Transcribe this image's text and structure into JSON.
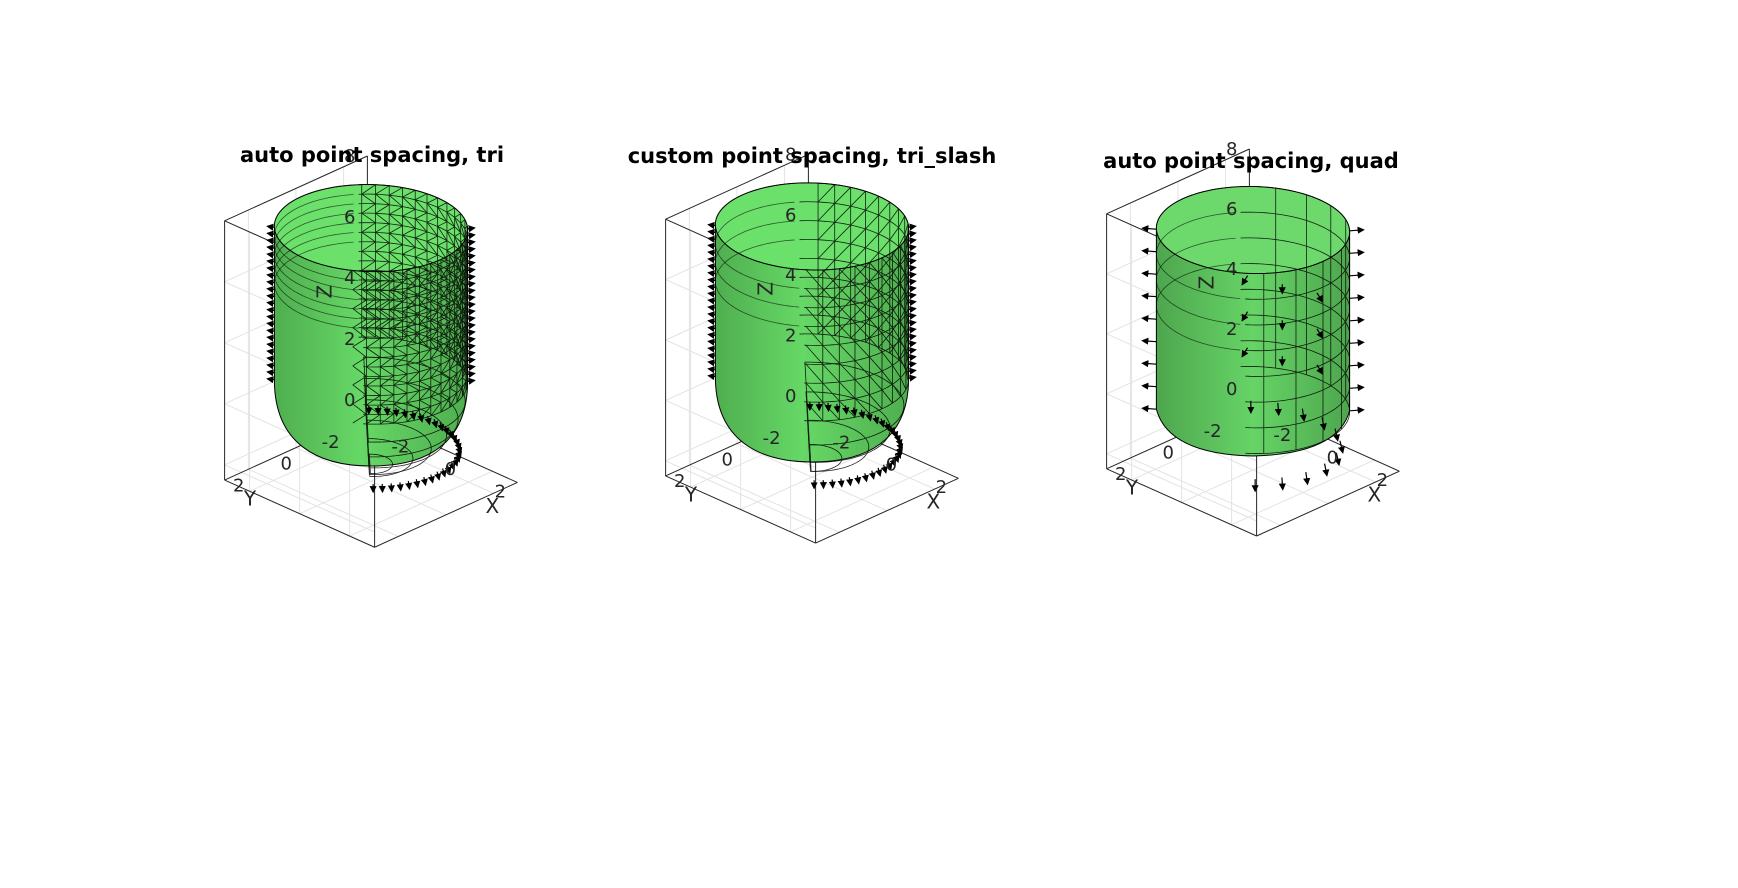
{
  "figure": {
    "background": "#ffffff",
    "surface_color": "#5fcf5f",
    "edge_color": "#000000",
    "normal_arrow_color": "#000000"
  },
  "chart_data": [
    {
      "type": "surface-mesh",
      "title": "auto point spacing, tri",
      "xlabel": "X",
      "ylabel": "Y",
      "zlabel": "Z",
      "xlim": [
        -3,
        3
      ],
      "ylim": [
        -3,
        3
      ],
      "zlim": [
        -0.5,
        8
      ],
      "xticks": [
        -2,
        0,
        2
      ],
      "yticks": [
        -2,
        0,
        2
      ],
      "zticks": [
        0,
        2,
        4,
        6,
        8
      ],
      "xticklabels": [
        "-2",
        "0",
        "2"
      ],
      "yticklabels": [
        "-2",
        "0",
        "2"
      ],
      "zticklabels": [
        "0",
        "2",
        "4",
        "6",
        "8"
      ],
      "shape": {
        "radius": 2.8,
        "cylinder_z": [
          2.8,
          7.8
        ],
        "bottom": "hemisphere"
      },
      "mesh": "tri",
      "normals": "outward-dense",
      "grid": true
    },
    {
      "type": "surface-mesh",
      "title": "custom point spacing, tri_slash",
      "xlabel": "X",
      "ylabel": "Y",
      "zlabel": "Z",
      "xlim": [
        -3,
        3
      ],
      "ylim": [
        -3,
        3
      ],
      "zlim": [
        -0.5,
        8
      ],
      "xticks": [
        -2,
        0,
        2
      ],
      "yticks": [
        -2,
        0,
        2
      ],
      "zticks": [
        0,
        2,
        4,
        6,
        8
      ],
      "xticklabels": [
        "-2",
        "0",
        "2"
      ],
      "yticklabels": [
        "-2",
        "0",
        "2"
      ],
      "zticklabels": [
        "0",
        "2",
        "4",
        "6",
        "8"
      ],
      "shape": {
        "radius": 2.8,
        "cylinder_z": [
          2.8,
          7.8
        ],
        "bottom": "hemisphere"
      },
      "mesh": "tri_slash",
      "normals": "outward-dense",
      "grid": true
    },
    {
      "type": "surface-mesh",
      "title": "auto point spacing, quad",
      "xlabel": "X",
      "ylabel": "Y",
      "zlabel": "Z",
      "xlim": [
        -3,
        3
      ],
      "ylim": [
        -3,
        3
      ],
      "zlim": [
        -0.5,
        8
      ],
      "xticks": [
        -2,
        0,
        2
      ],
      "yticks": [
        -2,
        0,
        2
      ],
      "zticks": [
        0,
        2,
        4,
        6,
        8
      ],
      "xticklabels": [
        "-2",
        "0",
        "2"
      ],
      "yticklabels": [
        "-2",
        "0",
        "2"
      ],
      "zticklabels": [
        "0",
        "2",
        "4",
        "6",
        "8"
      ],
      "shape": {
        "radius": 2.8,
        "cylinder_z": [
          1.5,
          7.5
        ],
        "bottom": "coarse-cap"
      },
      "mesh": "quad",
      "normals": "outward-sparse",
      "grid": true
    }
  ]
}
